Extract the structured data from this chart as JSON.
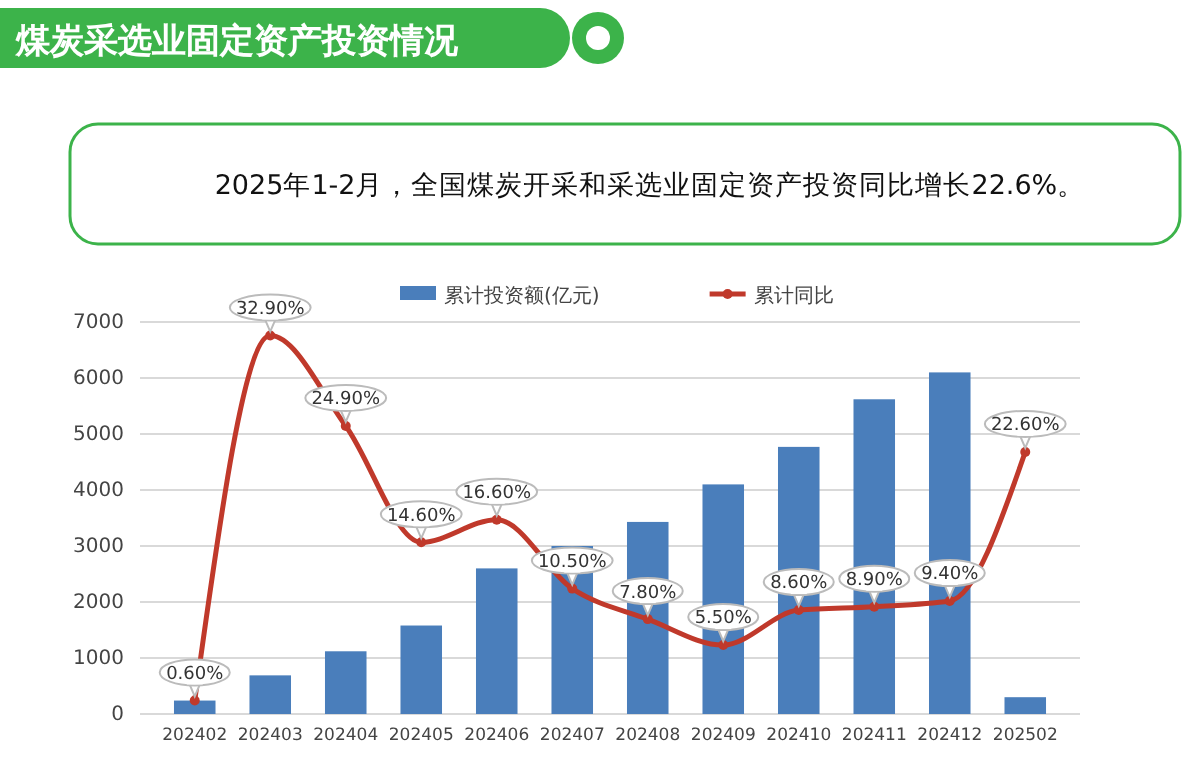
{
  "chart_data": {
    "type": "bar",
    "title": "煤炭采选业固定资产投资情况",
    "subtitle": "2025年1-2月，全国煤炭开采和采选业固定资产投资同比增长22.6%。",
    "categories": [
      "202402",
      "202403",
      "202404",
      "202405",
      "202406",
      "202407",
      "202408",
      "202409",
      "202410",
      "202411",
      "202412",
      "202502"
    ],
    "series": [
      {
        "name": "累计投资额(亿元)",
        "color": "#4a7ebb",
        "values": [
          240,
          690,
          1120,
          1580,
          2600,
          3000,
          3430,
          4100,
          4770,
          5620,
          6100,
          300
        ]
      },
      {
        "name": "累计同比",
        "type": "line",
        "axis": "y2",
        "color": "#c0392b",
        "marker": "circle",
        "values": [
          0.6,
          32.9,
          24.9,
          14.6,
          16.6,
          10.5,
          7.8,
          5.5,
          8.6,
          8.9,
          9.4,
          22.6
        ],
        "value_labels": [
          "0.60%",
          "32.90%",
          "24.90%",
          "14.60%",
          "16.60%",
          "10.50%",
          "7.80%",
          "5.50%",
          "8.60%",
          "8.90%",
          "9.40%",
          "22.60%"
        ]
      }
    ],
    "ylim": [
      0,
      7000
    ],
    "yticks": [
      0,
      1000,
      2000,
      3000,
      4000,
      5000,
      6000,
      7000
    ],
    "y2lim": [
      -0.6,
      34.1
    ],
    "grid": "y",
    "legend": "top",
    "tick_labels": "xy"
  }
}
